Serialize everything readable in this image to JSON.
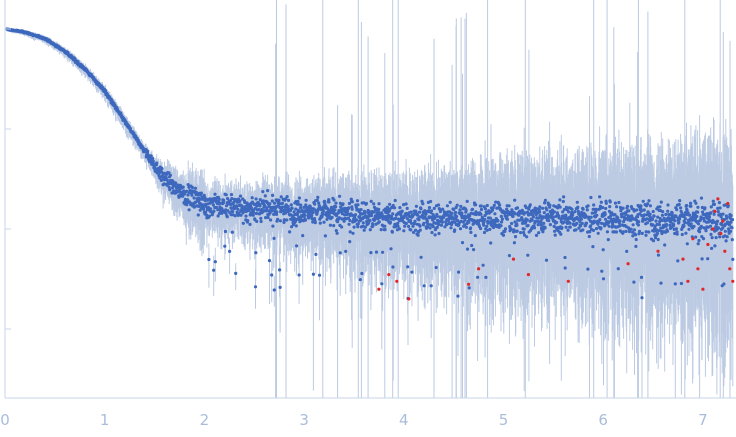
{
  "chart_data": {
    "type": "scatter",
    "title": "",
    "xlabel": "",
    "ylabel": "",
    "xlim": [
      0,
      7.32
    ],
    "ylog": true,
    "x_ticks": [
      "0",
      "1",
      "2",
      "3",
      "4",
      "5",
      "6",
      "7"
    ],
    "y_ticks": [],
    "grid": false,
    "legend": "none",
    "colors": {
      "points": "#3d68bd",
      "outliers": "#e0282a",
      "error_bars": "#bccbe3",
      "axis": "#c7d4e8",
      "tick_labels": "#a9bddb"
    },
    "trend": [
      {
        "x": 0.0,
        "y": 1.0
      },
      {
        "x": 0.2,
        "y": 0.93
      },
      {
        "x": 0.4,
        "y": 0.8
      },
      {
        "x": 0.6,
        "y": 0.6
      },
      {
        "x": 0.8,
        "y": 0.4
      },
      {
        "x": 1.0,
        "y": 0.24
      },
      {
        "x": 1.2,
        "y": 0.12
      },
      {
        "x": 1.4,
        "y": 0.06
      },
      {
        "x": 1.6,
        "y": 0.032
      },
      {
        "x": 1.8,
        "y": 0.022
      },
      {
        "x": 2.0,
        "y": 0.018
      },
      {
        "x": 2.5,
        "y": 0.016
      },
      {
        "x": 3.0,
        "y": 0.015
      },
      {
        "x": 4.0,
        "y": 0.013
      },
      {
        "x": 5.0,
        "y": 0.013
      },
      {
        "x": 6.0,
        "y": 0.013
      },
      {
        "x": 7.0,
        "y": 0.012
      },
      {
        "x": 7.3,
        "y": 0.012
      }
    ],
    "outliers": [
      {
        "x": 3.75,
        "y": 0.0025
      },
      {
        "x": 3.85,
        "y": 0.0035
      },
      {
        "x": 3.93,
        "y": 0.003
      },
      {
        "x": 4.05,
        "y": 0.002
      },
      {
        "x": 4.65,
        "y": 0.0028
      },
      {
        "x": 4.75,
        "y": 0.004
      },
      {
        "x": 5.1,
        "y": 0.005
      },
      {
        "x": 5.25,
        "y": 0.0035
      },
      {
        "x": 5.65,
        "y": 0.003
      },
      {
        "x": 6.25,
        "y": 0.0045
      },
      {
        "x": 6.55,
        "y": 0.006
      },
      {
        "x": 6.8,
        "y": 0.005
      },
      {
        "x": 6.85,
        "y": 0.003
      },
      {
        "x": 6.9,
        "y": 0.008
      },
      {
        "x": 6.95,
        "y": 0.004
      },
      {
        "x": 7.0,
        "y": 0.0025
      },
      {
        "x": 7.05,
        "y": 0.007
      },
      {
        "x": 7.1,
        "y": 0.01
      },
      {
        "x": 7.12,
        "y": 0.015
      },
      {
        "x": 7.15,
        "y": 0.02
      },
      {
        "x": 7.18,
        "y": 0.009
      },
      {
        "x": 7.2,
        "y": 0.012
      },
      {
        "x": 7.22,
        "y": 0.006
      },
      {
        "x": 7.25,
        "y": 0.018
      },
      {
        "x": 7.27,
        "y": 0.004
      },
      {
        "x": 7.3,
        "y": 0.003
      }
    ]
  }
}
